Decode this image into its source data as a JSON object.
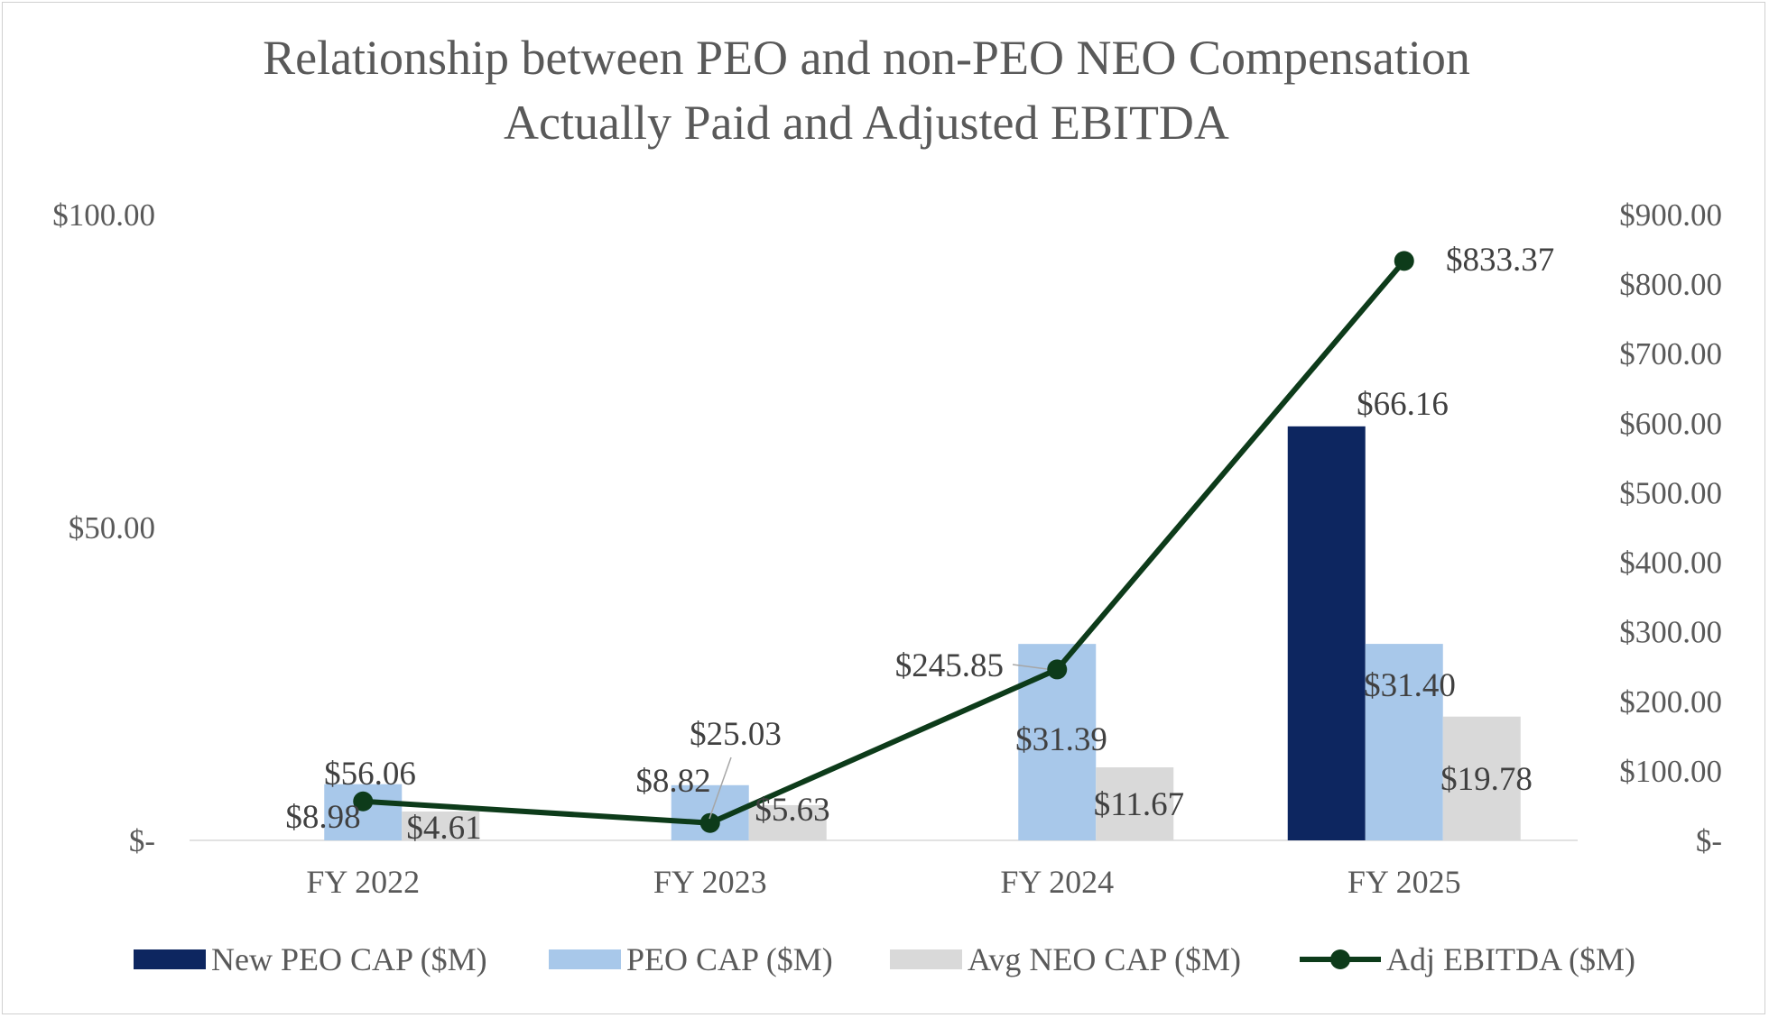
{
  "chart_data": {
    "type": "bar",
    "title_lines": [
      "Relationship between PEO and non-PEO NEO Compensation",
      "Actually Paid and Adjusted EBITDA"
    ],
    "categories": [
      "FY 2022",
      "FY 2023",
      "FY 2024",
      "FY 2025"
    ],
    "series": [
      {
        "name": "New PEO CAP ($M)",
        "axis": "left",
        "kind": "bar",
        "color": "#0d2660",
        "values": [
          null,
          null,
          null,
          66.16
        ],
        "labels": [
          "",
          "",
          "",
          "$66.16"
        ]
      },
      {
        "name": "PEO CAP ($M)",
        "axis": "left",
        "kind": "bar",
        "color": "#a8c8ea",
        "values": [
          8.98,
          8.82,
          31.39,
          31.4
        ],
        "labels": [
          "$8.98",
          "$8.82",
          "$31.39",
          "$31.40"
        ]
      },
      {
        "name": "Avg NEO CAP ($M)",
        "axis": "left",
        "kind": "bar",
        "color": "#d9d9d9",
        "values": [
          4.61,
          5.63,
          11.67,
          19.78
        ],
        "labels": [
          "$4.61",
          "$5.63",
          "$11.67",
          "$19.78"
        ]
      },
      {
        "name": "Adj EBITDA ($M)",
        "axis": "right",
        "kind": "line",
        "color": "#0d3b1a",
        "values": [
          56.06,
          25.03,
          245.85,
          833.37
        ],
        "labels": [
          "$56.06",
          "$25.03",
          "$245.85",
          "$833.37"
        ]
      }
    ],
    "y_left": {
      "min": 0,
      "max": 100,
      "ticks": [
        0,
        50,
        100
      ],
      "tick_labels": [
        "$-",
        "$50.00",
        "$100.00"
      ]
    },
    "y_right": {
      "min": 0,
      "max": 900,
      "ticks": [
        0,
        100,
        200,
        300,
        400,
        500,
        600,
        700,
        800,
        900
      ],
      "tick_labels": [
        "$-",
        "$100.00",
        "$200.00",
        "$300.00",
        "$400.00",
        "$500.00",
        "$600.00",
        "$700.00",
        "$800.00",
        "$900.00"
      ]
    },
    "grid": false,
    "legend_position": "bottom"
  }
}
